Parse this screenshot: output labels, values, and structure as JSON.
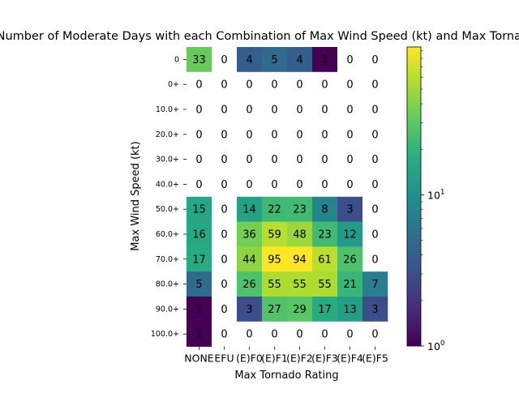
{
  "chart_data": {
    "type": "heatmap",
    "title": "Number of Moderate Days with each Combination of Max Wind Speed (kt) and Max Tornado Rating",
    "xlabel": "Max Tornado Rating",
    "ylabel": "Max Wind Speed (kt)",
    "x_categories": [
      "NONE",
      "EFU",
      "(E)F0",
      "(E)F1",
      "(E)F2",
      "(E)F3",
      "(E)F4",
      "(E)F5"
    ],
    "y_categories": [
      "0",
      "0+",
      "10.0+",
      "20.0+",
      "30.0+",
      "40.0+",
      "50.0+",
      "60.0+",
      "70.0+",
      "80.0+",
      "90.0+",
      "100.0+"
    ],
    "values": [
      [
        33,
        0,
        4,
        5,
        4,
        1,
        0,
        0
      ],
      [
        0,
        0,
        0,
        0,
        0,
        0,
        0,
        0
      ],
      [
        0,
        0,
        0,
        0,
        0,
        0,
        0,
        0
      ],
      [
        0,
        0,
        0,
        0,
        0,
        0,
        0,
        0
      ],
      [
        0,
        0,
        0,
        0,
        0,
        0,
        0,
        0
      ],
      [
        0,
        0,
        0,
        0,
        0,
        0,
        0,
        0
      ],
      [
        15,
        0,
        14,
        22,
        23,
        8,
        3,
        0
      ],
      [
        16,
        0,
        36,
        59,
        48,
        23,
        12,
        0
      ],
      [
        17,
        0,
        44,
        95,
        94,
        61,
        26,
        0
      ],
      [
        5,
        0,
        26,
        55,
        55,
        55,
        21,
        7
      ],
      [
        1,
        0,
        3,
        27,
        29,
        17,
        13,
        3
      ],
      [
        1,
        0,
        0,
        0,
        0,
        0,
        0,
        0
      ]
    ],
    "colorscale": "viridis",
    "color_scale_type": "log",
    "zero_cells": "white",
    "colorbar": {
      "range": [
        1,
        95
      ],
      "major_ticks": [
        {
          "value": 1,
          "base": "10",
          "exp": "0"
        },
        {
          "value": 10,
          "base": "10",
          "exp": "1"
        }
      ]
    },
    "grid": false
  }
}
